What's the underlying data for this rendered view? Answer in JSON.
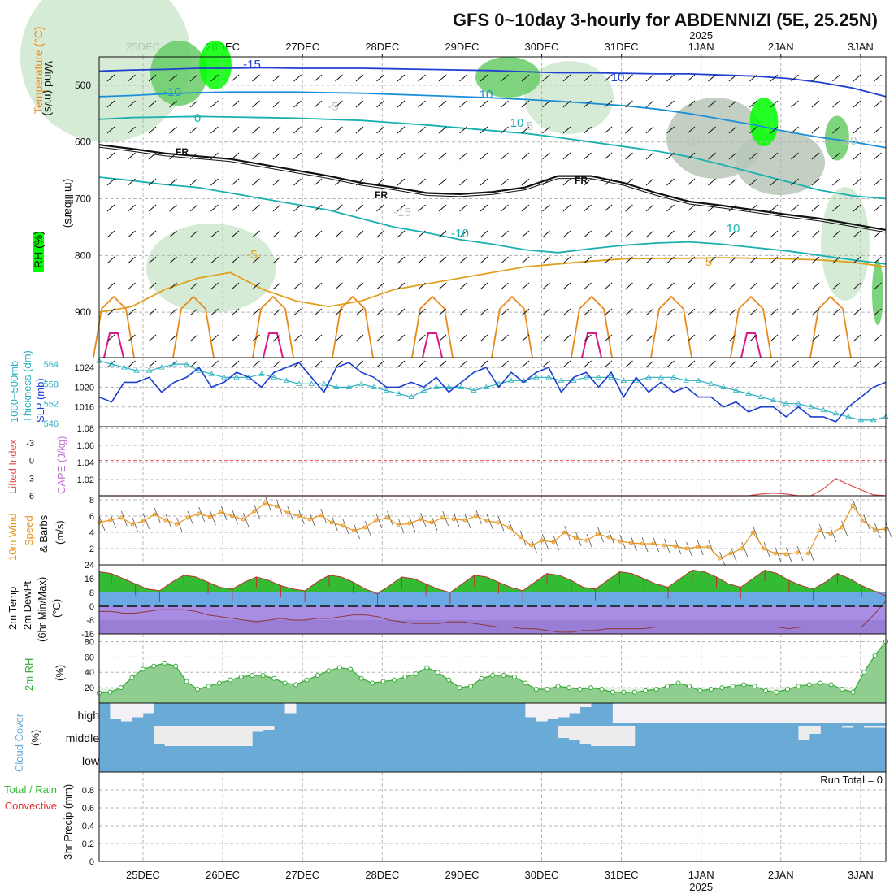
{
  "title": "GFS 0~10day 3-hourly for ABDENNIZI (5E, 25.25N)",
  "colors": {
    "grid": "#b4b4b4",
    "rh_dark": "#00ff00",
    "rh_mid": "#66cc66",
    "rh_light": "#cfe8cf",
    "rh_gray": "#b8c7b8",
    "temp_warm": "#e88a1a",
    "temp_hot": "#d81b8c",
    "temp_zero": "#e0a020",
    "temp_cold": "#1ab0b0",
    "temp_colder": "#1a8fd8",
    "temp_coldest": "#2040d0",
    "temp_vcold": "#8a1ab0",
    "slp": "#1a3fd0",
    "thickness": "#2ab0c0",
    "lifted": "#e05050",
    "cape": "#c070d0",
    "wind10": "#e8941a",
    "tmax_fill": "#33bb33",
    "cold_fill": "#5aa0e0",
    "freeze_fill": "#a080e0",
    "rh2m": "#33aa33",
    "cloud": "#6aaad6",
    "cloud_gap": "#ececec",
    "precip_total": "#33bb33",
    "precip_conv": "#e03030"
  },
  "chart_data": {
    "type": "meteogram",
    "x_axis": {
      "top_labels": [
        "25DEC",
        "26DEC",
        "27DEC",
        "28DEC",
        "29DEC",
        "30DEC",
        "31DEC",
        "1JAN",
        "2JAN",
        "3JAN"
      ],
      "year_label": "2025",
      "bottom_labels": [
        "25DEC",
        "26DEC",
        "27DEC",
        "28DEC",
        "29DEC",
        "30DEC",
        "31DEC",
        "1JAN",
        "2JAN",
        "3JAN"
      ],
      "time_step_hours": 3,
      "days": 10
    },
    "panels": [
      {
        "id": "upper_air",
        "ylabels": [
          "RH (%)",
          "Temperature (°C)",
          "Wind (m/s)"
        ],
        "ylabel_right": "(millibars)",
        "ylim": [
          980,
          450
        ],
        "yticks": [
          500,
          600,
          700,
          800,
          900
        ],
        "isotherm_labels": [
          "-15",
          "-10",
          "-5",
          "0",
          "5",
          "10",
          "-15",
          "-10",
          "-5",
          "5",
          "10"
        ],
        "rh_labels": [
          "10",
          "10",
          "10",
          "30",
          "10"
        ],
        "freezing_label": "FR",
        "isotherms_hpa": {
          "-15": [
            475,
            473,
            472,
            470,
            470,
            469,
            470,
            470,
            470,
            471,
            472,
            473,
            474,
            476,
            478,
            478,
            479,
            480,
            480,
            482,
            484,
            488,
            495,
            505,
            520
          ],
          "-10": [
            520,
            518,
            515,
            513,
            512,
            512,
            512,
            513,
            514,
            516,
            518,
            520,
            522,
            525,
            528,
            532,
            536,
            542,
            550,
            560,
            570,
            582,
            592,
            600,
            610
          ],
          "-5": [
            560,
            557,
            556,
            555,
            556,
            557,
            558,
            560,
            562,
            566,
            570,
            575,
            580,
            585,
            592,
            600,
            608,
            616,
            626,
            640,
            655,
            670,
            685,
            695,
            700
          ],
          "FR": [
            605,
            612,
            620,
            625,
            630,
            640,
            650,
            660,
            672,
            680,
            690,
            692,
            688,
            680,
            660,
            660,
            672,
            690,
            705,
            712,
            720,
            728,
            735,
            745,
            755
          ],
          "5": [
            662,
            668,
            675,
            680,
            690,
            700,
            710,
            720,
            735,
            750,
            760,
            772,
            780,
            790,
            795,
            788,
            782,
            778,
            776,
            780,
            786,
            792,
            800,
            808,
            815
          ],
          "10": [
            900,
            890,
            860,
            840,
            830,
            860,
            880,
            890,
            880,
            860,
            850,
            840,
            830,
            820,
            815,
            810,
            806,
            805,
            805,
            804,
            805,
            806,
            808,
            812,
            820
          ]
        }
      },
      {
        "id": "slp_thickness",
        "ylabels_left": [
          "1000~500mb",
          "Thickness (dm)"
        ],
        "ylabels_right": [
          "SLP (mb)"
        ],
        "thickness_ticks": [
          546,
          552,
          558,
          564
        ],
        "slp_ticks": [
          1016,
          1020,
          1024
        ],
        "slp_mb": [
          1018,
          1017,
          1021,
          1021,
          1022,
          1019,
          1021,
          1022,
          1024,
          1020,
          1021,
          1023,
          1022,
          1020,
          1023,
          1024,
          1025,
          1022,
          1019,
          1024,
          1025,
          1023,
          1022,
          1020,
          1020,
          1021,
          1020,
          1022,
          1019,
          1021,
          1023,
          1024,
          1020,
          1023,
          1021,
          1023,
          1024,
          1019,
          1022,
          1023,
          1020,
          1023,
          1018,
          1022,
          1019,
          1021,
          1019,
          1020,
          1018,
          1018,
          1016,
          1017,
          1015,
          1016,
          1016,
          1014,
          1016,
          1014,
          1014,
          1013,
          1016,
          1018,
          1020,
          1021
        ],
        "thickness_dm": [
          565,
          564,
          563,
          562,
          562,
          563,
          564,
          564,
          562,
          561,
          560,
          560,
          560,
          561,
          560,
          559,
          558,
          558,
          558,
          557,
          557,
          558,
          557,
          556,
          555,
          554,
          556,
          557,
          557,
          557,
          556,
          557,
          558,
          559,
          559,
          560,
          560,
          559,
          559,
          560,
          560,
          560,
          559,
          559,
          560,
          560,
          560,
          559,
          559,
          558,
          557,
          556,
          555,
          554,
          553,
          552,
          552,
          551,
          550,
          549,
          548,
          547,
          547,
          548
        ]
      },
      {
        "id": "cape_li",
        "ylabels_left": [
          "Lifted Index"
        ],
        "ylabels_right": [
          "CAPE (J/kg)"
        ],
        "li_ticks": [
          "-3",
          "0",
          "3",
          "6"
        ],
        "cape_ticks": [
          "1.02",
          "1.04",
          "1.06",
          "1.08"
        ],
        "li_zero_line": 0,
        "cape_series": [
          0,
          0,
          0,
          0,
          0,
          0,
          0,
          0,
          0,
          0,
          0,
          0,
          0,
          0,
          0,
          0,
          0,
          0,
          0,
          0,
          0,
          0,
          0,
          0,
          0,
          0,
          0,
          0,
          0,
          0,
          0,
          0,
          0,
          0,
          0,
          0,
          0,
          0,
          0,
          0,
          0,
          0,
          0,
          0,
          0,
          0,
          0,
          0,
          0,
          0,
          0,
          0,
          0,
          0.002,
          0.003,
          0.002,
          0,
          0,
          0.008,
          0.02,
          0.013,
          0.007,
          0.001,
          0
        ]
      },
      {
        "id": "wind10m",
        "ylabels": [
          "10m Wind",
          "Speed",
          "& Barbs",
          "(m/s)"
        ],
        "yticks": [
          2,
          4,
          6,
          8
        ],
        "ylim": [
          0,
          8.5
        ],
        "speed_ms": [
          5.2,
          5.5,
          5.8,
          5.0,
          5.4,
          6.2,
          5.5,
          5.0,
          5.8,
          6.3,
          5.9,
          6.5,
          6.0,
          5.6,
          6.6,
          7.6,
          7.2,
          6.4,
          6.0,
          5.6,
          6.1,
          5.2,
          4.8,
          4.2,
          4.6,
          5.5,
          5.8,
          4.9,
          5.1,
          5.6,
          5.2,
          5.8,
          5.6,
          5.5,
          6.0,
          5.4,
          5.2,
          4.6,
          3.4,
          2.4,
          3.0,
          2.8,
          4.0,
          3.3,
          3.0,
          3.8,
          3.4,
          2.9,
          2.7,
          2.6,
          2.6,
          2.4,
          2.3,
          2.0,
          2.2,
          2.2,
          0.8,
          1.4,
          2.0,
          4.0,
          2.0,
          1.4,
          1.3,
          1.5,
          1.4,
          4.2,
          3.8,
          4.6,
          7.3,
          5.4,
          4.3,
          4.4
        ]
      },
      {
        "id": "temp2m",
        "ylabels": [
          "2m Temp",
          "2m DewPt",
          "(6hr Min/Max)",
          "(°C)"
        ],
        "yticks": [
          -16,
          -8,
          0,
          8,
          16,
          24
        ],
        "ylim": [
          -16,
          24
        ],
        "temp_c": [
          20,
          19,
          16,
          13,
          10,
          9,
          14,
          18,
          17,
          14,
          11,
          10,
          14,
          17,
          15,
          12,
          10,
          9,
          14,
          18,
          17,
          14,
          10,
          7,
          12,
          17,
          16,
          13,
          10,
          8,
          13,
          18,
          17,
          14,
          11,
          9,
          14,
          19,
          18,
          15,
          11,
          10,
          15,
          20,
          19,
          16,
          13,
          11,
          16,
          21,
          20,
          17,
          13,
          11,
          16,
          21,
          19,
          15,
          12,
          10,
          14,
          19,
          16,
          12,
          9,
          6
        ],
        "dewpoint_c": [
          -3,
          -3,
          -4,
          -4,
          -3,
          -2,
          -2,
          -2,
          -3,
          -5,
          -6,
          -7,
          -8,
          -9,
          -8,
          -7,
          -8,
          -8,
          -7,
          -7,
          -6,
          -5,
          -5,
          -6,
          -8,
          -9,
          -10,
          -10,
          -10,
          -9,
          -9,
          -10,
          -11,
          -12,
          -12,
          -13,
          -13,
          -14,
          -15,
          -15,
          -14,
          -14,
          -13,
          -13,
          -13,
          -13,
          -12,
          -12,
          -12,
          -12,
          -12,
          -12,
          -12,
          -12,
          -12,
          -12,
          -12,
          -13,
          -12,
          -12,
          -12,
          -12,
          -12,
          -12,
          -5,
          3
        ]
      },
      {
        "id": "rh2m",
        "ylabels": [
          "2m RH",
          "(%)"
        ],
        "yticks": [
          20,
          40,
          60,
          80
        ],
        "ylim": [
          0,
          90
        ],
        "rh_pct": [
          13,
          14,
          20,
          33,
          44,
          48,
          52,
          48,
          28,
          18,
          22,
          26,
          30,
          34,
          36,
          36,
          32,
          26,
          24,
          30,
          36,
          42,
          46,
          44,
          32,
          26,
          28,
          30,
          34,
          38,
          46,
          40,
          30,
          20,
          22,
          32,
          36,
          36,
          34,
          26,
          18,
          18,
          22,
          20,
          18,
          20,
          18,
          14,
          14,
          14,
          16,
          18,
          22,
          26,
          22,
          16,
          18,
          20,
          22,
          24,
          22,
          16,
          14,
          18,
          22,
          24,
          26,
          24,
          18,
          14,
          40,
          62,
          80
        ]
      },
      {
        "id": "cloud",
        "ylabels": [
          "Cloud Cover",
          "(%)"
        ],
        "levels": [
          "high",
          "middle",
          "low"
        ],
        "high_gap_frac": [
          1,
          0.2,
          0.1,
          0.3,
          0.5,
          1,
          1,
          1,
          1,
          1,
          1,
          1,
          1,
          1,
          1,
          1,
          1,
          0.5,
          1,
          1,
          1,
          1,
          1,
          1,
          1,
          1,
          1,
          1,
          1,
          1,
          1,
          1,
          1,
          1,
          1,
          1,
          1,
          1,
          1,
          0.3,
          0.1,
          0.2,
          0.3,
          0.5,
          0.8,
          1,
          1,
          0,
          0,
          0,
          0,
          0,
          0,
          0,
          0,
          0,
          0,
          0,
          0,
          0,
          0,
          0,
          0,
          0,
          0,
          0,
          0,
          0,
          0,
          0,
          0,
          0
        ],
        "middle_gap_frac": [
          0,
          0,
          0,
          0,
          0,
          0.9,
          1,
          1,
          1,
          1,
          1,
          1,
          1,
          1,
          0.3,
          0.2,
          0,
          0,
          0,
          0,
          0,
          0,
          0,
          0,
          0,
          0,
          0,
          0,
          0,
          0,
          0,
          0,
          0,
          0,
          0,
          0,
          0,
          0,
          0,
          0,
          0,
          0,
          0.6,
          0.7,
          0.9,
          1,
          1,
          1,
          1,
          0,
          0,
          0,
          0,
          0,
          0,
          0,
          0,
          0,
          0,
          0,
          0,
          0,
          0,
          0,
          0.7,
          0.4,
          0,
          0,
          0.1,
          0,
          0.1,
          0.1
        ]
      },
      {
        "id": "precip",
        "ylabels": [
          "3hr Precip (mm)",
          "Total / Rain",
          "Convective"
        ],
        "yticks": [
          "0",
          "0.2",
          "0.4",
          "0.6",
          "0.8"
        ],
        "ylim": [
          0,
          1
        ],
        "run_total_label": "Run Total = 0",
        "total_mm": [],
        "convective_mm": []
      }
    ]
  }
}
